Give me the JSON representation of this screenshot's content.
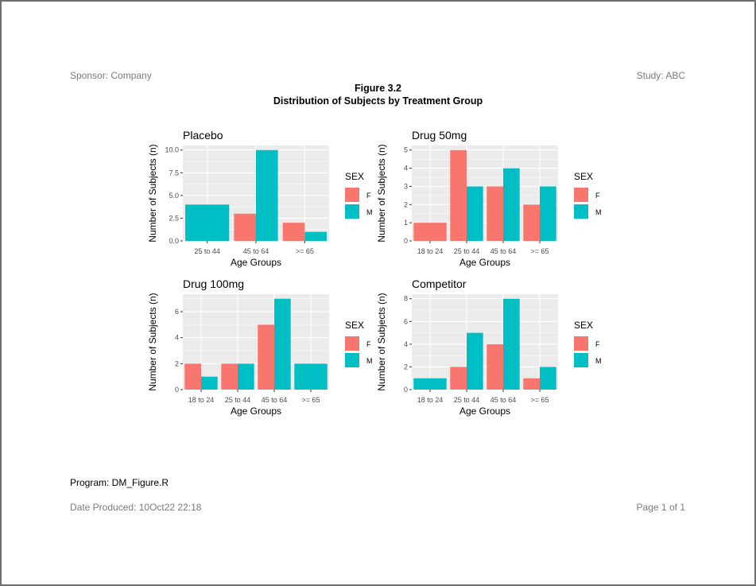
{
  "header": {
    "sponsor": "Sponsor: Company",
    "study": "Study: ABC"
  },
  "titles": {
    "figure": "Figure 3.2",
    "subtitle": "Distribution of Subjects by Treatment Group"
  },
  "footer": {
    "program": "Program: DM_Figure.R",
    "date_label": "Date Produced:",
    "date_value": "10Oct22 22:18",
    "page_label": "Page",
    "page_num": "1",
    "page_of": "of",
    "page_total": "1"
  },
  "colors": {
    "F": "#F8766D",
    "M": "#00BFC4",
    "panel_bg": "#EBEBEB",
    "grid": "#FFFFFF"
  },
  "chart_data": [
    {
      "type": "bar",
      "title": "Placebo",
      "xlabel": "Age Groups",
      "ylabel": "Number of Subjects (n)",
      "categories": [
        "25 to 44",
        "45 to 64",
        ">= 65"
      ],
      "yticks": [
        "0.0",
        "2.5",
        "5.0",
        "7.5",
        "10.0"
      ],
      "ylim": [
        0,
        10.5
      ],
      "legend": {
        "title": "SEX",
        "entries": [
          "F",
          "M"
        ]
      },
      "series": [
        {
          "name": "F",
          "values": [
            null,
            3,
            2
          ]
        },
        {
          "name": "M",
          "values": [
            4,
            10,
            1
          ]
        }
      ]
    },
    {
      "type": "bar",
      "title": "Drug 50mg",
      "xlabel": "Age Groups",
      "ylabel": "Number of Subjects (n)",
      "categories": [
        "18 to 24",
        "25 to 44",
        "45 to 64",
        ">= 65"
      ],
      "yticks": [
        "0",
        "1",
        "2",
        "3",
        "4",
        "5"
      ],
      "ylim": [
        0,
        5.25
      ],
      "legend": {
        "title": "SEX",
        "entries": [
          "F",
          "M"
        ]
      },
      "series": [
        {
          "name": "F",
          "values": [
            1,
            5,
            3,
            2
          ]
        },
        {
          "name": "M",
          "values": [
            null,
            3,
            4,
            3
          ]
        }
      ]
    },
    {
      "type": "bar",
      "title": "Drug 100mg",
      "xlabel": "Age Groups",
      "ylabel": "Number of Subjects (n)",
      "categories": [
        "18 to 24",
        "25 to 44",
        "45 to 64",
        ">= 65"
      ],
      "yticks": [
        "0",
        "2",
        "4",
        "6"
      ],
      "ylim": [
        0,
        7.35
      ],
      "legend": {
        "title": "SEX",
        "entries": [
          "F",
          "M"
        ]
      },
      "series": [
        {
          "name": "F",
          "values": [
            2,
            2,
            5,
            null
          ]
        },
        {
          "name": "M",
          "values": [
            1,
            2,
            7,
            2
          ]
        }
      ]
    },
    {
      "type": "bar",
      "title": "Competitor",
      "xlabel": "Age Groups",
      "ylabel": "Number of Subjects (n)",
      "categories": [
        "18 to 24",
        "25 to 44",
        "45 to 64",
        ">= 65"
      ],
      "yticks": [
        "0",
        "2",
        "4",
        "6",
        "8"
      ],
      "ylim": [
        0,
        8.4
      ],
      "legend": {
        "title": "SEX",
        "entries": [
          "F",
          "M"
        ]
      },
      "series": [
        {
          "name": "F",
          "values": [
            null,
            2,
            4,
            1
          ]
        },
        {
          "name": "M",
          "values": [
            1,
            5,
            8,
            2
          ]
        }
      ]
    }
  ]
}
